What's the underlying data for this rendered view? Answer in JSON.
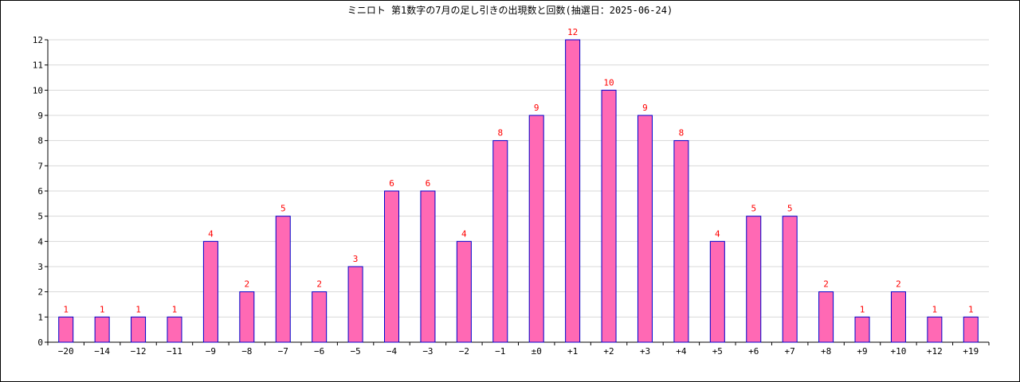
{
  "chart_data": {
    "type": "bar",
    "title": "ミニロト 第1数字の7月の足し引きの出現数と回数(抽選日：2025-06-24)",
    "xlabel": "",
    "ylabel": "",
    "categories": [
      "−20",
      "−14",
      "−12",
      "−11",
      "−9",
      "−8",
      "−7",
      "−6",
      "−5",
      "−4",
      "−3",
      "−2",
      "−1",
      "±0",
      "+1",
      "+2",
      "+3",
      "+4",
      "+5",
      "+6",
      "+7",
      "+8",
      "+9",
      "+10",
      "+12",
      "+19"
    ],
    "values": [
      1,
      1,
      1,
      1,
      4,
      2,
      5,
      2,
      3,
      6,
      6,
      4,
      8,
      9,
      12,
      10,
      9,
      8,
      4,
      5,
      5,
      2,
      1,
      2,
      1,
      1
    ],
    "ylim": [
      0,
      12
    ],
    "yticks": [
      0,
      1,
      2,
      3,
      4,
      5,
      6,
      7,
      8,
      9,
      10,
      11,
      12
    ],
    "grid": true,
    "legend": "none",
    "bar_color": "#ff69b4",
    "bar_edge_color": "#0000cc",
    "label_color": "#ff0000"
  }
}
